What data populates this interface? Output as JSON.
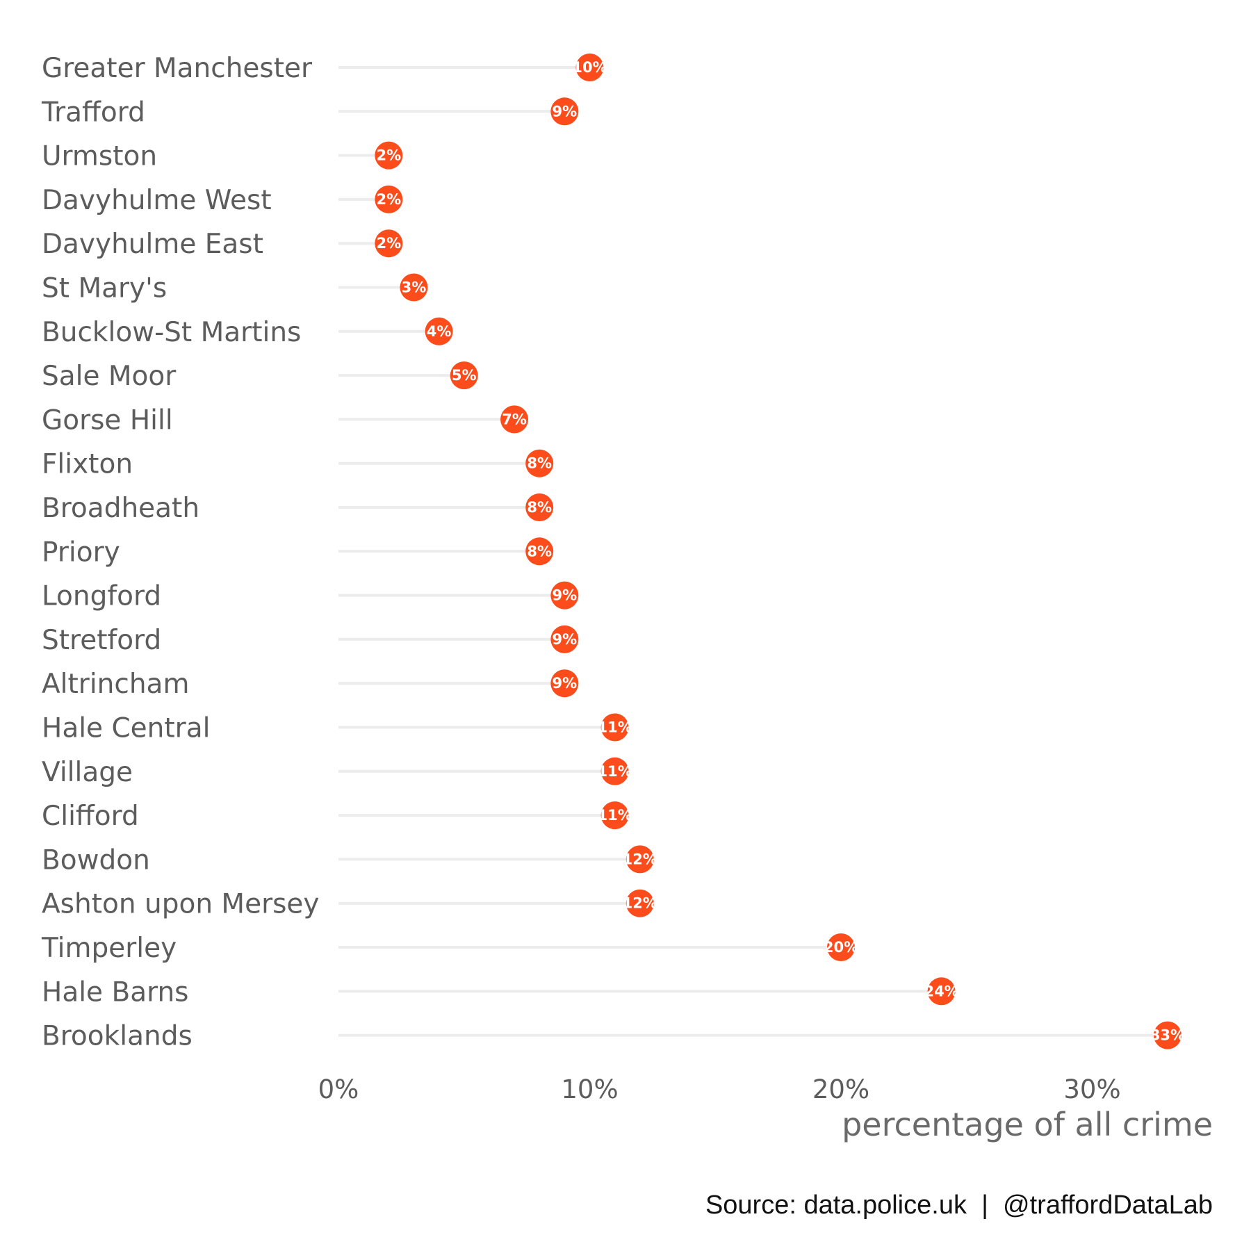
{
  "chart_data": {
    "type": "lollipop",
    "categories": [
      "Greater Manchester",
      "Trafford",
      "Urmston",
      "Davyhulme West",
      "Davyhulme East",
      "St Mary's",
      "Bucklow-St Martins",
      "Sale Moor",
      "Gorse Hill",
      "Flixton",
      "Broadheath",
      "Priory",
      "Longford",
      "Stretford",
      "Altrincham",
      "Hale Central",
      "Village",
      "Clifford",
      "Bowdon",
      "Ashton upon Mersey",
      "Timperley",
      "Hale Barns",
      "Brooklands"
    ],
    "values": [
      10,
      9,
      2,
      2,
      2,
      3,
      4,
      5,
      7,
      8,
      8,
      8,
      9,
      9,
      9,
      11,
      11,
      11,
      12,
      12,
      20,
      24,
      33
    ],
    "data_labels": [
      "10%",
      "9%",
      "2%",
      "2%",
      "2%",
      "3%",
      "4%",
      "5%",
      "7%",
      "8%",
      "8%",
      "8%",
      "9%",
      "9%",
      "9%",
      "11%",
      "11%",
      "11%",
      "12%",
      "12%",
      "20%",
      "24%",
      "33%"
    ],
    "xlabel": "percentage of all crime",
    "ylabel": "",
    "xlim": [
      0,
      35
    ],
    "x_ticks": [
      0,
      10,
      20,
      30
    ],
    "x_tick_labels": [
      "0%",
      "10%",
      "20%",
      "30%"
    ],
    "grid": false,
    "caption": "Source: data.police.uk  |  @traffordDataLab",
    "colors": {
      "point": "#fc4c1c",
      "segment": "#ececec",
      "label_text": "#ffffff",
      "axis_text": "#5c5c5c"
    }
  }
}
